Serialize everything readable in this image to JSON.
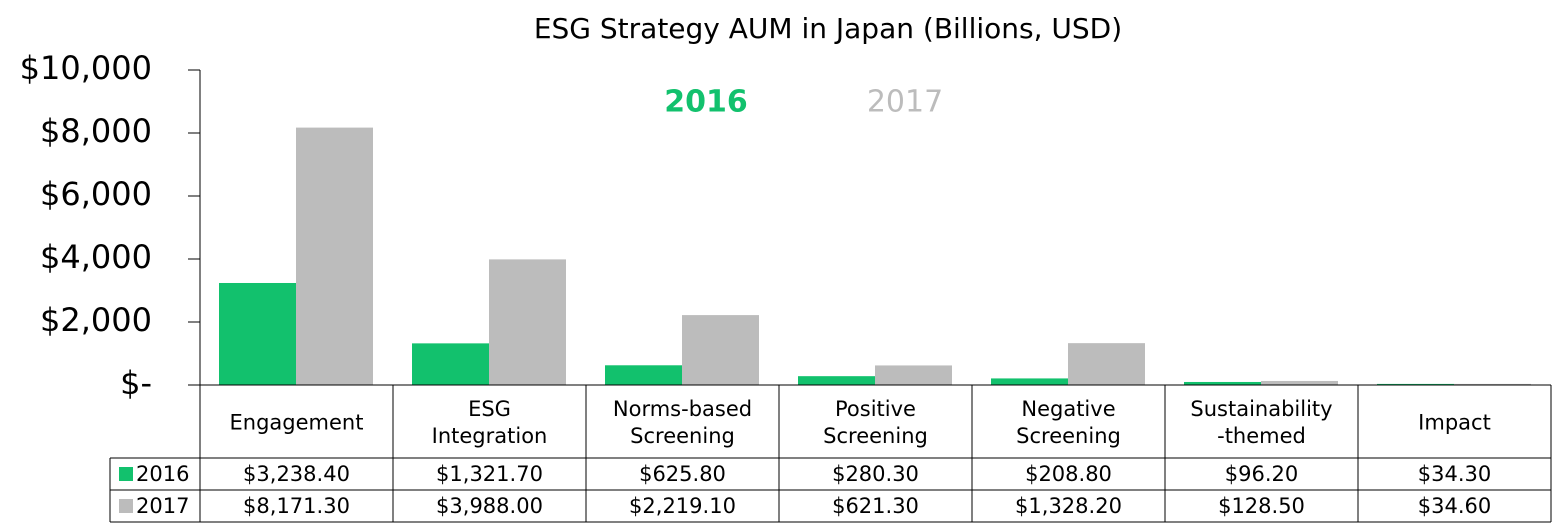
{
  "chart_data": {
    "type": "bar",
    "title": "ESG Strategy AUM in Japan (Billions, USD)",
    "categories": [
      [
        "Engagement"
      ],
      [
        "ESG",
        "Integration"
      ],
      [
        "Norms-based",
        "Screening"
      ],
      [
        "Positive",
        "Screening"
      ],
      [
        "Negative",
        "Screening"
      ],
      [
        "Sustainability",
        "-themed"
      ],
      [
        "Impact"
      ]
    ],
    "series": [
      {
        "name": "2016",
        "color": "#12c16d",
        "values": [
          3238.4,
          1321.7,
          625.8,
          280.3,
          208.8,
          96.2,
          34.3
        ],
        "value_labels": [
          "$3,238.40",
          "$1,321.70",
          "$625.80",
          "$280.30",
          "$208.80",
          "$96.20",
          "$34.30"
        ]
      },
      {
        "name": "2017",
        "color": "#bcbcbc",
        "values": [
          8171.3,
          3988.0,
          2219.1,
          621.3,
          1328.2,
          128.5,
          34.6
        ],
        "value_labels": [
          "$8,171.30",
          "$3,988.00",
          "$2,219.10",
          "$621.30",
          "$1,328.20",
          "$128.50",
          "$34.60"
        ]
      }
    ],
    "ylim": [
      0,
      10000
    ],
    "yticks": [
      {
        "value": 0,
        "label": "$-"
      },
      {
        "value": 2000,
        "label": "$2,000"
      },
      {
        "value": 4000,
        "label": "$4,000"
      },
      {
        "value": 6000,
        "label": "$6,000"
      },
      {
        "value": 8000,
        "label": "$8,000"
      },
      {
        "value": 10000,
        "label": "$10,000"
      }
    ],
    "legend": "top",
    "grid": false
  }
}
